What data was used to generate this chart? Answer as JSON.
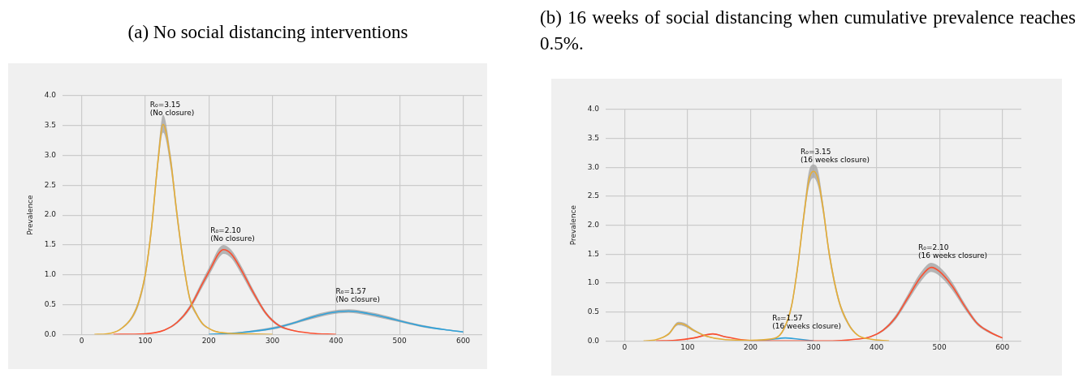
{
  "chart_data": [
    {
      "type": "line",
      "title": "(a) No social distancing interventions",
      "ylabel": "Prevalence",
      "xlim": [
        -30,
        630
      ],
      "xticks": [
        0,
        100,
        200,
        300,
        400,
        500,
        600
      ],
      "ylim": [
        0,
        4.0
      ],
      "yticks": [
        {
          "value": 0,
          "label": "0.0"
        },
        {
          "value": 0.5,
          "label": "0.5"
        },
        {
          "value": 1,
          "label": "1.0"
        },
        {
          "value": 1.5,
          "label": "1.5"
        },
        {
          "value": 2,
          "label": "2.0"
        },
        {
          "value": 2.5,
          "label": "2.5"
        },
        {
          "value": 3,
          "label": "3.0"
        },
        {
          "value": 3.5,
          "label": "3.5"
        },
        {
          "value": 4,
          "label": "4.0"
        }
      ],
      "grid": true,
      "legend": false,
      "marker": "none",
      "line_style": "solid",
      "series": [
        {
          "color": "#e5ae38",
          "x": [
            20,
            40,
            60,
            80,
            90,
            100,
            110,
            120,
            128,
            140,
            150,
            160,
            170,
            180,
            190,
            200,
            210,
            230,
            260,
            300
          ],
          "values": [
            0,
            0.01,
            0.08,
            0.3,
            0.55,
            1.0,
            1.8,
            2.9,
            3.52,
            2.9,
            2.0,
            1.2,
            0.6,
            0.35,
            0.18,
            0.1,
            0.05,
            0.02,
            0.01,
            0
          ],
          "lower": [
            0,
            0.01,
            0.07,
            0.27,
            0.5,
            0.93,
            1.7,
            2.78,
            3.38,
            2.78,
            1.9,
            1.12,
            0.55,
            0.32,
            0.16,
            0.09,
            0.04,
            0.02,
            0.01,
            0
          ],
          "upper": [
            0,
            0.01,
            0.09,
            0.33,
            0.6,
            1.07,
            1.9,
            3.02,
            3.68,
            3.02,
            2.1,
            1.28,
            0.65,
            0.38,
            0.2,
            0.11,
            0.06,
            0.02,
            0.01,
            0
          ]
        },
        {
          "color": "#fc4f30",
          "x": [
            50,
            100,
            130,
            150,
            170,
            190,
            205,
            215,
            223,
            235,
            250,
            270,
            290,
            310,
            330,
            360,
            400
          ],
          "values": [
            0,
            0.01,
            0.07,
            0.2,
            0.45,
            0.85,
            1.15,
            1.35,
            1.42,
            1.35,
            1.1,
            0.7,
            0.35,
            0.15,
            0.07,
            0.02,
            0
          ],
          "lower": [
            0,
            0.01,
            0.06,
            0.18,
            0.41,
            0.79,
            1.08,
            1.27,
            1.35,
            1.28,
            1.03,
            0.65,
            0.32,
            0.13,
            0.06,
            0.02,
            0
          ],
          "upper": [
            0,
            0.01,
            0.08,
            0.22,
            0.49,
            0.91,
            1.22,
            1.43,
            1.5,
            1.42,
            1.17,
            0.75,
            0.38,
            0.17,
            0.08,
            0.02,
            0
          ]
        },
        {
          "color": "#30a2da",
          "x": [
            200,
            250,
            300,
            330,
            360,
            390,
            420,
            450,
            480,
            510,
            540,
            570,
            600
          ],
          "values": [
            0,
            0.03,
            0.1,
            0.18,
            0.28,
            0.36,
            0.39,
            0.35,
            0.28,
            0.2,
            0.13,
            0.08,
            0.04
          ],
          "lower": [
            0,
            0.02,
            0.08,
            0.16,
            0.25,
            0.33,
            0.36,
            0.32,
            0.25,
            0.18,
            0.11,
            0.07,
            0.03
          ],
          "upper": [
            0,
            0.04,
            0.12,
            0.2,
            0.31,
            0.39,
            0.42,
            0.38,
            0.31,
            0.22,
            0.15,
            0.09,
            0.05
          ]
        }
      ],
      "annotations": [
        {
          "text": "R₀=3.15\n(No closure)",
          "x": 128,
          "y": 3.52
        },
        {
          "text": "R₀=2.10\n(No closure)",
          "x": 223,
          "y": 1.42
        },
        {
          "text": "R₀=1.57\n(No closure)",
          "x": 420,
          "y": 0.39
        }
      ]
    },
    {
      "type": "line",
      "title": "(b) 16 weeks of social distancing when cumulative prevalence reaches 0.5%.",
      "ylabel": "Prevalence",
      "xlim": [
        -30,
        630
      ],
      "xticks": [
        0,
        100,
        200,
        300,
        400,
        500,
        600
      ],
      "ylim": [
        0,
        4.0
      ],
      "yticks": [
        {
          "value": 0,
          "label": "0.0"
        },
        {
          "value": 0.5,
          "label": "0.5"
        },
        {
          "value": 1,
          "label": "1.0"
        },
        {
          "value": 1.5,
          "label": "1.5"
        },
        {
          "value": 2,
          "label": "2.0"
        },
        {
          "value": 2.5,
          "label": "2.5"
        },
        {
          "value": 3,
          "label": "3.0"
        },
        {
          "value": 3.5,
          "label": "3.5"
        },
        {
          "value": 4,
          "label": "4.0"
        }
      ],
      "grid": true,
      "legend": false,
      "marker": "none",
      "line_style": "solid",
      "series": [
        {
          "color": "#e5ae38",
          "x": [
            30,
            50,
            70,
            85,
            95,
            110,
            130,
            160,
            200,
            230,
            250,
            265,
            275,
            285,
            293,
            300,
            307,
            315,
            325,
            340,
            355,
            370,
            390,
            420
          ],
          "values": [
            0,
            0.02,
            0.12,
            0.3,
            0.28,
            0.18,
            0.08,
            0.02,
            0.01,
            0.03,
            0.15,
            0.6,
            1.3,
            2.2,
            2.8,
            2.93,
            2.8,
            2.3,
            1.5,
            0.7,
            0.3,
            0.1,
            0.03,
            0
          ],
          "lower": [
            0,
            0.02,
            0.1,
            0.27,
            0.25,
            0.16,
            0.07,
            0.02,
            0.01,
            0.03,
            0.13,
            0.55,
            1.22,
            2.1,
            2.68,
            2.82,
            2.68,
            2.2,
            1.42,
            0.65,
            0.27,
            0.09,
            0.03,
            0
          ],
          "upper": [
            0,
            0.02,
            0.14,
            0.33,
            0.31,
            0.2,
            0.09,
            0.02,
            0.01,
            0.03,
            0.17,
            0.65,
            1.38,
            2.3,
            2.95,
            3.05,
            2.95,
            2.4,
            1.58,
            0.75,
            0.33,
            0.11,
            0.03,
            0
          ]
        },
        {
          "color": "#fc4f30",
          "x": [
            50,
            80,
            110,
            140,
            160,
            185,
            210,
            330,
            360,
            390,
            410,
            430,
            450,
            470,
            487,
            500,
            520,
            540,
            560,
            580,
            600
          ],
          "values": [
            0,
            0.01,
            0.05,
            0.12,
            0.07,
            0.02,
            0,
            0,
            0.02,
            0.07,
            0.18,
            0.4,
            0.75,
            1.1,
            1.27,
            1.2,
            0.95,
            0.6,
            0.3,
            0.15,
            0.05
          ],
          "lower": [
            0,
            0.01,
            0.04,
            0.11,
            0.06,
            0.02,
            0,
            0,
            0.02,
            0.06,
            0.16,
            0.36,
            0.69,
            1.02,
            1.19,
            1.12,
            0.88,
            0.55,
            0.27,
            0.13,
            0.04
          ],
          "upper": [
            0,
            0.01,
            0.06,
            0.13,
            0.08,
            0.02,
            0,
            0,
            0.02,
            0.08,
            0.2,
            0.44,
            0.81,
            1.18,
            1.35,
            1.28,
            1.02,
            0.65,
            0.33,
            0.17,
            0.06
          ]
        },
        {
          "color": "#30a2da",
          "x": [
            200,
            230,
            255,
            275,
            300
          ],
          "values": [
            0,
            0.02,
            0.05,
            0.03,
            0
          ]
        }
      ],
      "annotations": [
        {
          "text": "R₀=3.15\n(16 weeks closure)",
          "x": 300,
          "y": 2.93
        },
        {
          "text": "R₀=2.10\n(16 weeks closure)",
          "x": 487,
          "y": 1.27
        },
        {
          "text": "R₀=1.57\n(16 weeks closure)",
          "x": 255,
          "y": 0.05
        }
      ]
    }
  ]
}
